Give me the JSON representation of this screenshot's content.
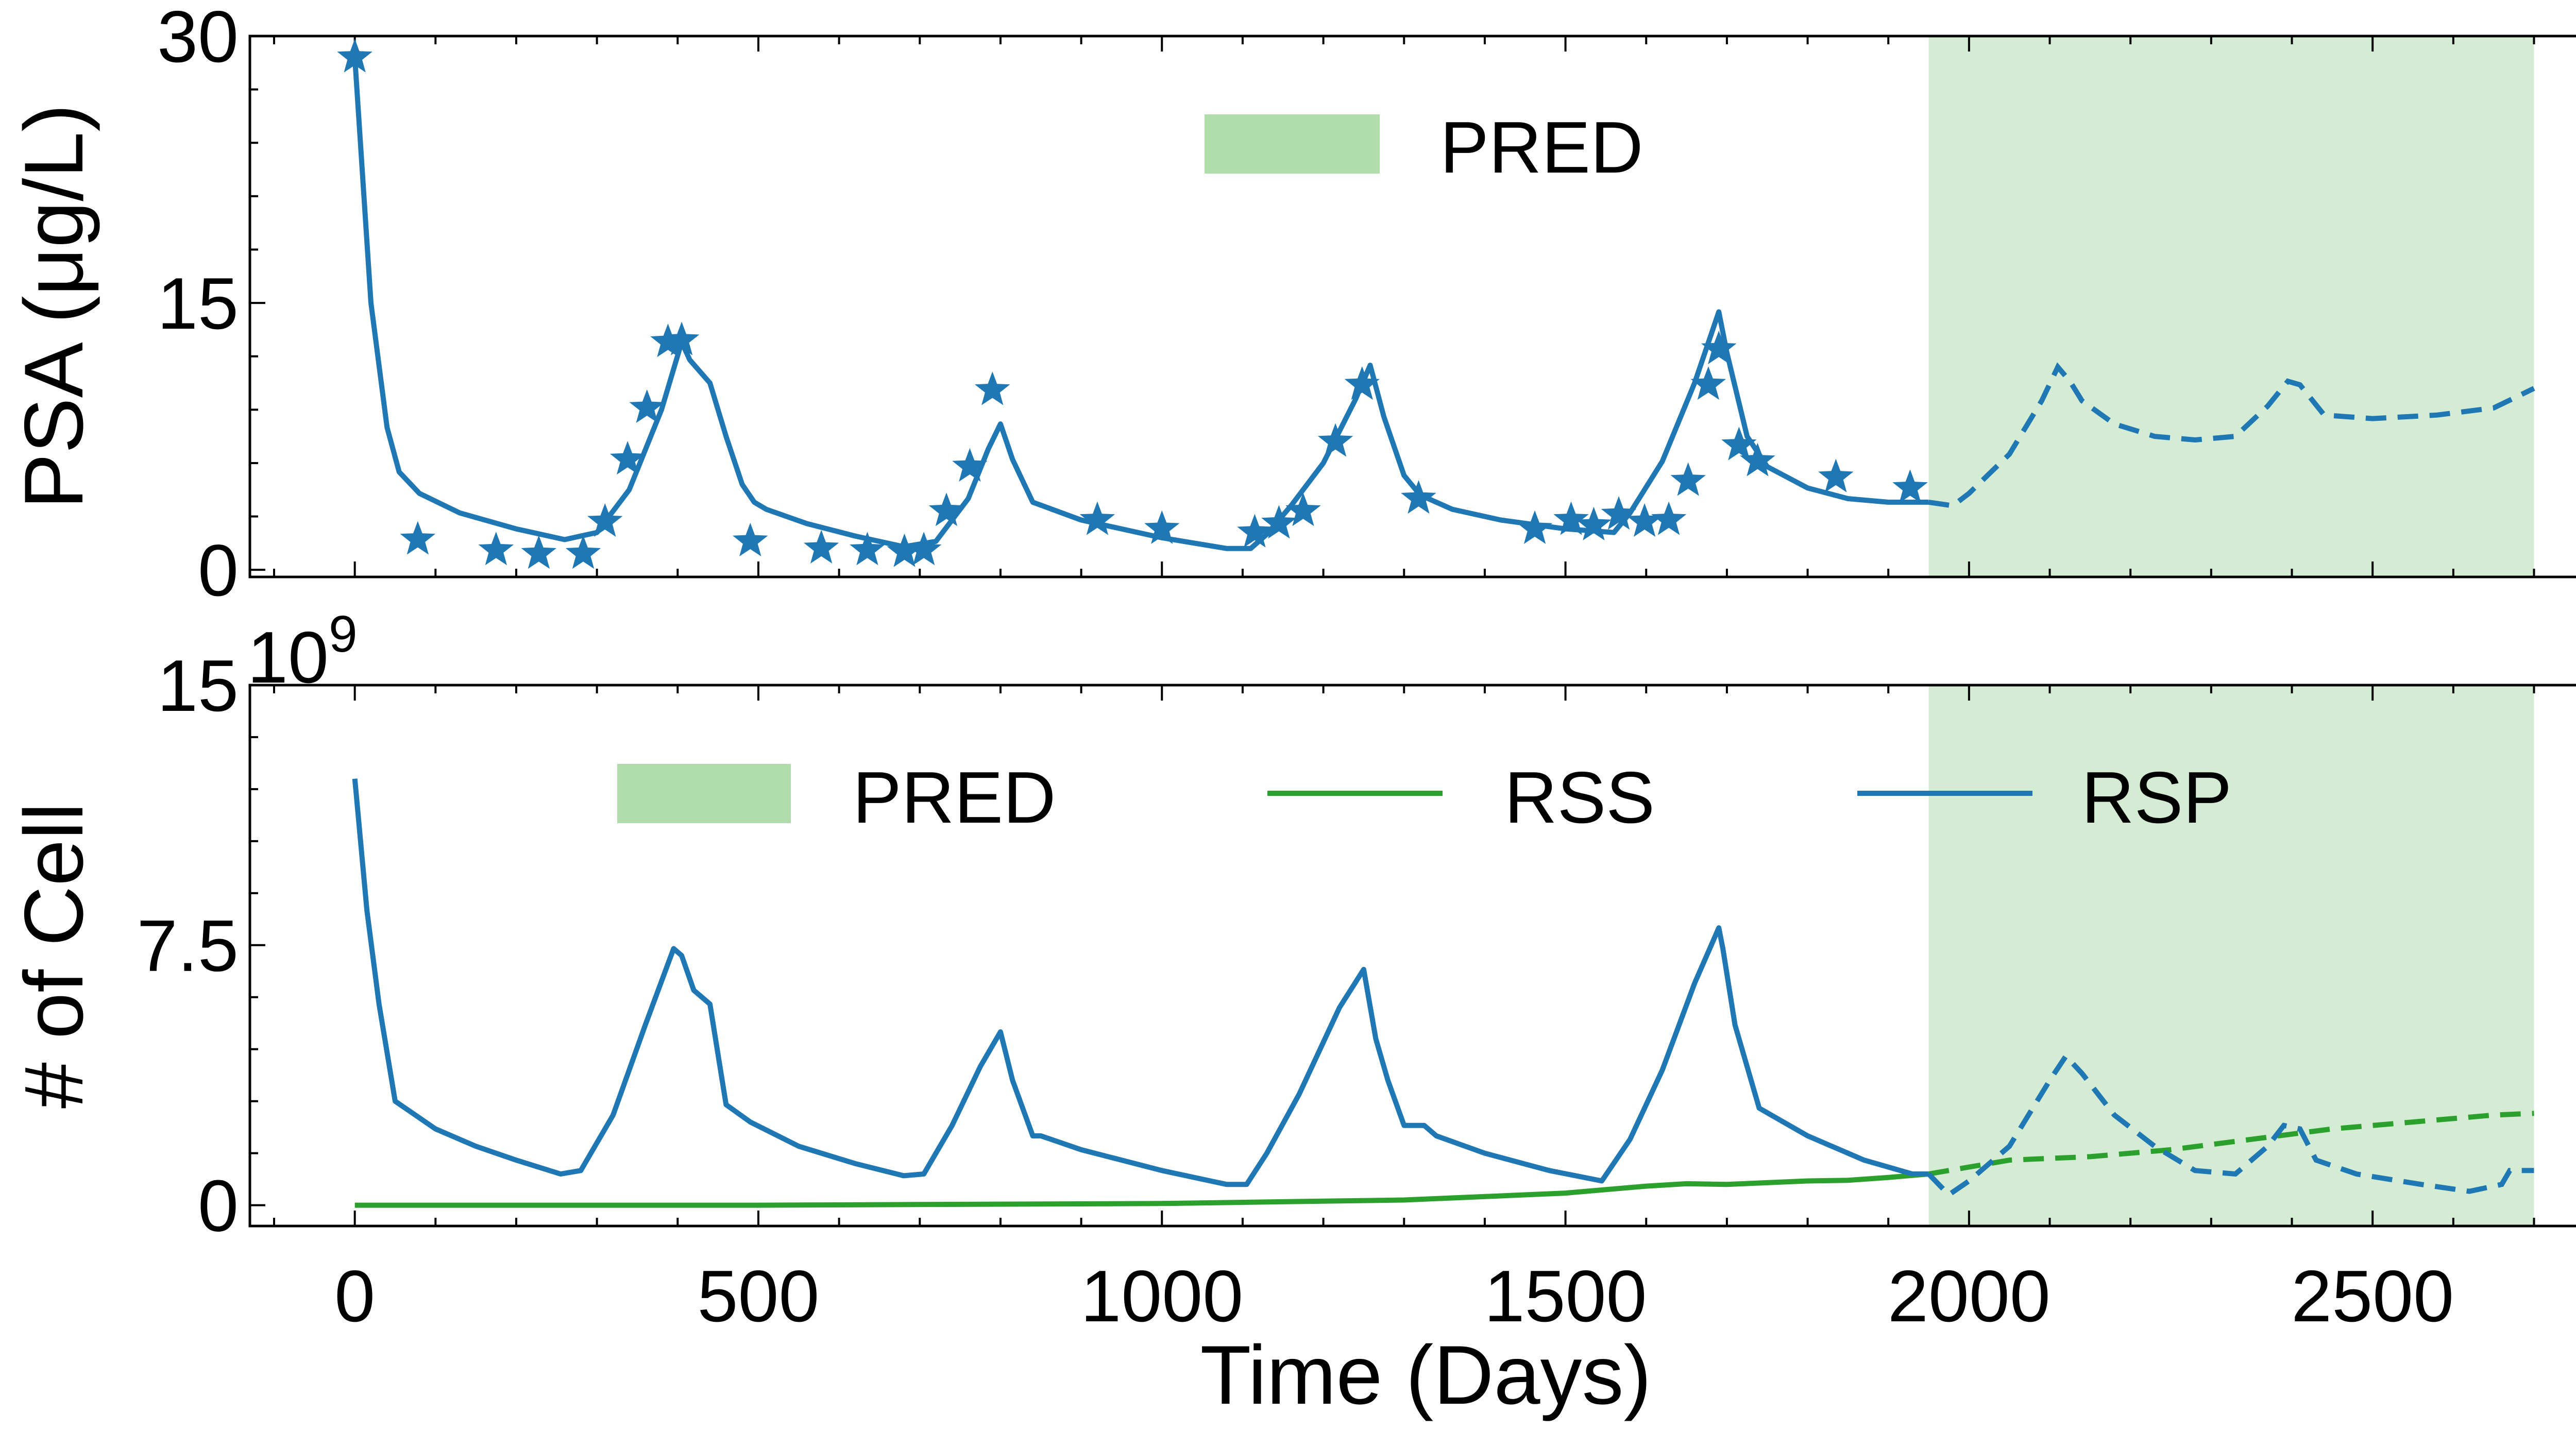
{
  "colors": {
    "psa": "#1f77b4",
    "rss": "#2ca02c",
    "rsp": "#1f77b4",
    "pred_patch": "#b0dcab",
    "pred_band": "#d4ecd3"
  },
  "chart_data": [
    {
      "type": "line",
      "ylabel": "PSA (μg/L)",
      "xlim": [
        -130,
        2835
      ],
      "ylim": [
        -0.4,
        30
      ],
      "yticks": [
        0,
        15,
        30
      ],
      "yticklabels": [
        "0",
        "15",
        "30"
      ],
      "prediction_region": [
        1950,
        2700
      ],
      "legend": {
        "placement": "upper center",
        "entries": [
          {
            "label": "PRED",
            "kind": "patch"
          }
        ]
      },
      "series": [
        {
          "kind": "measured",
          "marker": "star",
          "x": [
            0,
            78,
            175,
            228,
            283,
            310,
            338,
            362,
            388,
            405,
            490,
            578,
            635,
            681,
            705,
            733,
            762,
            790,
            920,
            1000,
            1115,
            1145,
            1175,
            1215,
            1248,
            1318,
            1462,
            1507,
            1535,
            1566,
            1598,
            1628,
            1652,
            1677,
            1690,
            1715,
            1738,
            1835,
            1927
          ],
          "y": [
            28.8,
            1.7,
            1.1,
            0.9,
            0.9,
            2.7,
            6.2,
            9.1,
            12.8,
            12.9,
            1.6,
            1.2,
            1.1,
            1.0,
            1.1,
            3.3,
            5.8,
            10.1,
            2.8,
            2.3,
            2.1,
            2.6,
            3.3,
            7.2,
            10.4,
            4.0,
            2.3,
            2.8,
            2.5,
            3.1,
            2.7,
            2.8,
            5.0,
            10.4,
            12.4,
            7.0,
            6.1,
            5.2,
            4.6
          ]
        },
        {
          "kind": "fit",
          "x": [
            0,
            20,
            40,
            55,
            80,
            130,
            200,
            260,
            300,
            340,
            380,
            405,
            415,
            440,
            460,
            480,
            495,
            510,
            560,
            620,
            680,
            720,
            760,
            785,
            800,
            815,
            840,
            900,
            1000,
            1080,
            1110,
            1130,
            1160,
            1200,
            1240,
            1258,
            1275,
            1300,
            1320,
            1360,
            1420,
            1500,
            1560,
            1580,
            1620,
            1660,
            1690,
            1700,
            1725,
            1750,
            1800,
            1850,
            1900,
            1950
          ],
          "y": [
            28.8,
            15.0,
            8.0,
            5.5,
            4.3,
            3.2,
            2.3,
            1.7,
            2.1,
            4.5,
            9.0,
            12.8,
            11.8,
            10.5,
            7.5,
            4.8,
            3.8,
            3.4,
            2.6,
            1.9,
            1.3,
            1.6,
            4.0,
            6.8,
            8.2,
            6.2,
            3.8,
            2.8,
            1.8,
            1.2,
            1.2,
            2.0,
            3.6,
            6.0,
            9.6,
            11.5,
            8.6,
            5.3,
            4.2,
            3.4,
            2.8,
            2.3,
            2.1,
            3.2,
            6.1,
            10.5,
            14.5,
            12.2,
            7.5,
            5.8,
            4.6,
            4.0,
            3.8,
            3.8
          ]
        },
        {
          "kind": "prediction",
          "dashed": true,
          "x": [
            1950,
            1980,
            2000,
            2050,
            2090,
            2110,
            2125,
            2140,
            2180,
            2230,
            2280,
            2330,
            2370,
            2395,
            2410,
            2440,
            2500,
            2580,
            2650,
            2700
          ],
          "y": [
            3.8,
            3.6,
            4.3,
            6.5,
            9.5,
            11.4,
            10.6,
            9.5,
            8.2,
            7.5,
            7.3,
            7.5,
            9.2,
            10.6,
            10.4,
            8.7,
            8.5,
            8.7,
            9.1,
            10.2
          ]
        }
      ]
    },
    {
      "type": "line",
      "xlabel": "Time (Days)",
      "ylabel": "# of Cell",
      "offset_text": "1e9",
      "xlim": [
        -130,
        2835
      ],
      "ylim": [
        -0.6,
        15
      ],
      "yticks": [
        0,
        7.5,
        15
      ],
      "yticklabels": [
        "0",
        "7.5",
        "15"
      ],
      "xticks": [
        0,
        500,
        1000,
        1500,
        2000,
        2500
      ],
      "xticklabels": [
        "0",
        "500",
        "1000",
        "1500",
        "2000",
        "2500"
      ],
      "prediction_region": [
        1950,
        2700
      ],
      "legend": {
        "placement": "upper center",
        "entries": [
          {
            "label": "PRED",
            "kind": "patch"
          },
          {
            "label": "RSS",
            "kind": "line"
          },
          {
            "label": "RSP",
            "kind": "line"
          }
        ]
      },
      "series": [
        {
          "name": "RSP",
          "x": [
            0,
            15,
            30,
            50,
            100,
            150,
            200,
            255,
            280,
            320,
            360,
            395,
            405,
            420,
            440,
            460,
            490,
            550,
            620,
            680,
            705,
            740,
            775,
            800,
            815,
            840,
            850,
            900,
            1000,
            1080,
            1105,
            1130,
            1170,
            1220,
            1250,
            1265,
            1280,
            1300,
            1310,
            1325,
            1340,
            1400,
            1480,
            1545,
            1580,
            1620,
            1660,
            1690,
            1695,
            1710,
            1740,
            1800,
            1870,
            1930,
            1950
          ],
          "y": [
            12.3,
            8.5,
            5.8,
            3.0,
            2.2,
            1.7,
            1.3,
            0.9,
            1.0,
            2.6,
            5.2,
            7.4,
            7.2,
            6.2,
            5.8,
            2.9,
            2.4,
            1.7,
            1.2,
            0.85,
            0.9,
            2.3,
            4.0,
            5.0,
            3.6,
            2.0,
            2.0,
            1.6,
            1.0,
            0.6,
            0.6,
            1.5,
            3.2,
            5.7,
            6.8,
            4.8,
            3.6,
            2.3,
            2.3,
            2.3,
            2.0,
            1.5,
            1.0,
            0.7,
            1.9,
            3.9,
            6.4,
            8.0,
            7.4,
            5.2,
            2.8,
            2.0,
            1.3,
            0.9,
            0.9
          ]
        },
        {
          "name": "RSS",
          "x": [
            0,
            500,
            1000,
            1300,
            1500,
            1600,
            1650,
            1700,
            1750,
            1800,
            1850,
            1900,
            1950
          ],
          "y": [
            0.0,
            0.0,
            0.05,
            0.15,
            0.35,
            0.55,
            0.62,
            0.6,
            0.65,
            0.7,
            0.72,
            0.8,
            0.9
          ]
        },
        {
          "name": "RSP",
          "kind": "prediction",
          "dashed": true,
          "x": [
            1950,
            1975,
            2000,
            2050,
            2100,
            2120,
            2140,
            2180,
            2230,
            2280,
            2330,
            2370,
            2390,
            2410,
            2430,
            2480,
            2560,
            2620,
            2660,
            2670,
            2700
          ],
          "y": [
            0.9,
            0.3,
            0.7,
            1.7,
            3.6,
            4.3,
            3.8,
            2.6,
            1.7,
            1.0,
            0.9,
            1.7,
            2.3,
            2.2,
            1.3,
            0.9,
            0.6,
            0.4,
            0.6,
            1.0,
            1.0
          ]
        },
        {
          "name": "RSS",
          "kind": "prediction",
          "dashed": true,
          "x": [
            1950,
            2050,
            2150,
            2250,
            2350,
            2450,
            2550,
            2650,
            2700
          ],
          "y": [
            0.9,
            1.3,
            1.4,
            1.6,
            1.9,
            2.2,
            2.4,
            2.6,
            2.65
          ]
        }
      ]
    }
  ]
}
